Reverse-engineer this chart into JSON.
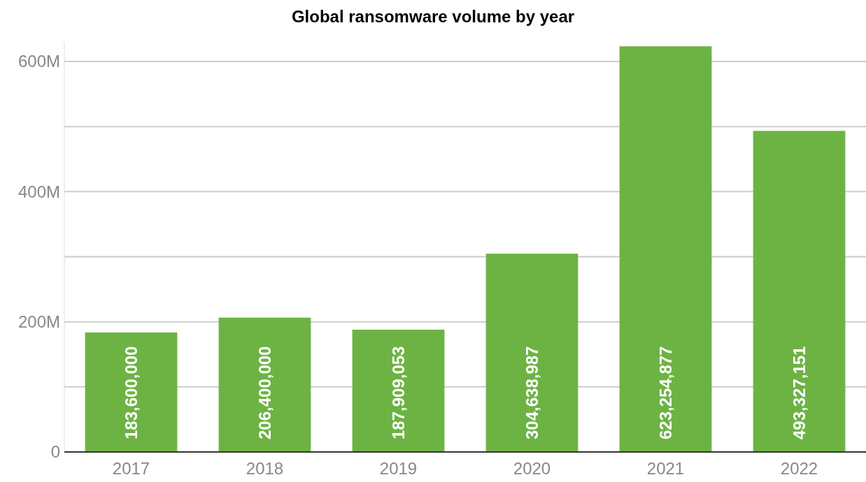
{
  "chart_data": {
    "type": "bar",
    "title": "Global ransomware volume by year",
    "categories": [
      "2017",
      "2018",
      "2019",
      "2020",
      "2021",
      "2022"
    ],
    "values": [
      183600000,
      206400000,
      187909053,
      304638987,
      623254877,
      493327151
    ],
    "color": "#6db344",
    "ylim": [
      0,
      630000000
    ],
    "yticks": [
      0,
      {
        "value": 100000000,
        "label": null
      },
      {
        "value": 200000000,
        "label": "200M"
      },
      {
        "value": 300000000,
        "label": null
      },
      {
        "value": 400000000,
        "label": "400M"
      },
      {
        "value": 500000000,
        "label": null
      },
      {
        "value": 600000000,
        "label": "600M"
      }
    ],
    "value_labels": [
      "183,600,000",
      "206,400,000",
      "187,909,053",
      "304,638,987",
      "623,254,877",
      "493,327,151"
    ],
    "grid": "y"
  }
}
